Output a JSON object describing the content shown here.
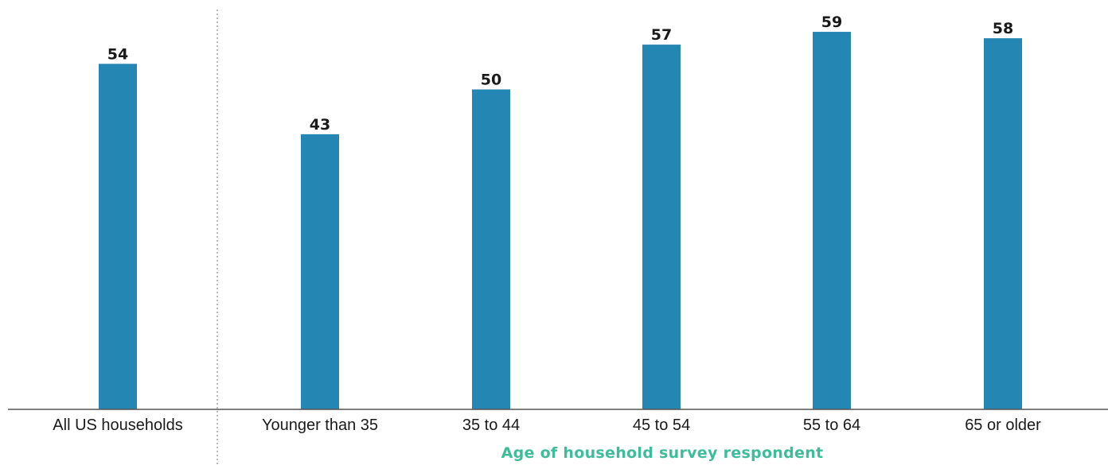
{
  "chart_data": {
    "type": "bar",
    "categories": [
      "All US households",
      "Younger than 35",
      "35 to 44",
      "45 to 54",
      "55 to 64",
      "65 or older"
    ],
    "values": [
      54,
      43,
      50,
      57,
      59,
      58
    ],
    "title": "",
    "xlabel": "Age of household survey respondent",
    "ylabel": "",
    "ylim": [
      0,
      60
    ],
    "grid": false,
    "legend": "none",
    "bar_color": "#2486b2",
    "xlabel_color": "#3dbd9a",
    "axis_color": "#555555",
    "separator": "dotted vertical line after first category"
  }
}
